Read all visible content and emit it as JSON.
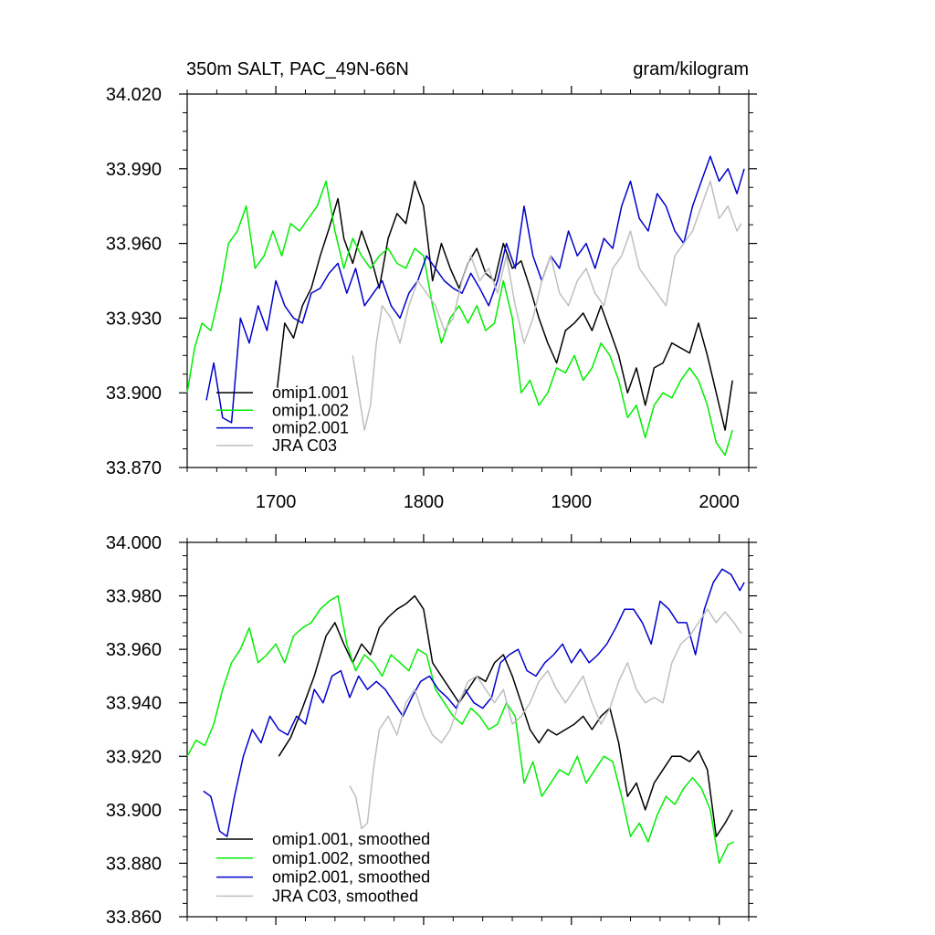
{
  "chart_data": [
    {
      "type": "line",
      "title": "350m SALT, PAC_49N-66N",
      "units": "gram/kilogram",
      "xlim": [
        1640,
        2020
      ],
      "ylim": [
        33.87,
        34.02
      ],
      "yticks": [
        "33.870",
        "33.900",
        "33.930",
        "33.960",
        "33.990",
        "34.020"
      ],
      "xticks": [
        "1700",
        "1800",
        "1900",
        "2000"
      ],
      "legend_position": "bottom-left",
      "series": [
        {
          "name": "omip1.001",
          "color": "#000000",
          "x": [
            1701,
            1706,
            1712,
            1718,
            1724,
            1730,
            1736,
            1742,
            1746,
            1752,
            1758,
            1764,
            1770,
            1776,
            1782,
            1788,
            1794,
            1800,
            1806,
            1812,
            1818,
            1824,
            1830,
            1836,
            1842,
            1848,
            1854,
            1860,
            1866,
            1872,
            1878,
            1884,
            1890,
            1896,
            1902,
            1908,
            1914,
            1920,
            1926,
            1932,
            1938,
            1944,
            1950,
            1956,
            1962,
            1968,
            1974,
            1980,
            1986,
            1992,
            1998,
            2004,
            2009
          ],
          "y": [
            33.902,
            33.928,
            33.922,
            33.935,
            33.942,
            33.955,
            33.966,
            33.978,
            33.962,
            33.952,
            33.965,
            33.955,
            33.942,
            33.962,
            33.972,
            33.968,
            33.985,
            33.975,
            33.945,
            33.96,
            33.95,
            33.942,
            33.952,
            33.958,
            33.948,
            33.945,
            33.96,
            33.95,
            33.953,
            33.942,
            33.93,
            33.92,
            33.912,
            33.925,
            33.928,
            33.932,
            33.925,
            33.935,
            33.925,
            33.915,
            33.9,
            33.91,
            33.895,
            33.91,
            33.912,
            33.92,
            33.918,
            33.916,
            33.928,
            33.915,
            33.9,
            33.885,
            33.905
          ]
        },
        {
          "name": "omip1.002",
          "color": "#00ee00",
          "x": [
            1640,
            1645,
            1650,
            1656,
            1662,
            1668,
            1674,
            1680,
            1686,
            1692,
            1698,
            1704,
            1710,
            1716,
            1722,
            1728,
            1734,
            1740,
            1746,
            1752,
            1758,
            1764,
            1770,
            1776,
            1782,
            1788,
            1794,
            1800,
            1806,
            1812,
            1818,
            1824,
            1830,
            1836,
            1842,
            1848,
            1854,
            1860,
            1866,
            1872,
            1878,
            1884,
            1890,
            1896,
            1902,
            1908,
            1914,
            1920,
            1926,
            1932,
            1938,
            1944,
            1950,
            1956,
            1962,
            1968,
            1974,
            1980,
            1986,
            1992,
            1998,
            2004,
            2009
          ],
          "y": [
            33.9,
            33.918,
            33.928,
            33.925,
            33.94,
            33.96,
            33.965,
            33.975,
            33.95,
            33.955,
            33.965,
            33.955,
            33.968,
            33.965,
            33.97,
            33.975,
            33.985,
            33.965,
            33.95,
            33.962,
            33.955,
            33.95,
            33.955,
            33.958,
            33.952,
            33.95,
            33.958,
            33.955,
            33.935,
            33.92,
            33.93,
            33.935,
            33.928,
            33.935,
            33.925,
            33.928,
            33.945,
            33.93,
            33.9,
            33.905,
            33.895,
            33.9,
            33.91,
            33.908,
            33.915,
            33.905,
            33.91,
            33.92,
            33.915,
            33.905,
            33.89,
            33.895,
            33.882,
            33.895,
            33.9,
            33.898,
            33.905,
            33.91,
            33.905,
            33.895,
            33.88,
            33.875,
            33.885
          ]
        },
        {
          "name": "omip2.001",
          "color": "#0000cc",
          "x": [
            1653,
            1658,
            1664,
            1670,
            1676,
            1682,
            1688,
            1694,
            1700,
            1706,
            1712,
            1718,
            1724,
            1730,
            1736,
            1742,
            1748,
            1754,
            1760,
            1766,
            1772,
            1778,
            1784,
            1790,
            1796,
            1802,
            1808,
            1814,
            1820,
            1826,
            1832,
            1838,
            1844,
            1850,
            1856,
            1862,
            1868,
            1874,
            1880,
            1886,
            1892,
            1898,
            1904,
            1910,
            1916,
            1922,
            1928,
            1934,
            1940,
            1946,
            1952,
            1958,
            1964,
            1970,
            1976,
            1982,
            1988,
            1994,
            2000,
            2006,
            2012,
            2017
          ],
          "y": [
            33.897,
            33.912,
            33.89,
            33.888,
            33.93,
            33.92,
            33.935,
            33.925,
            33.945,
            33.935,
            33.93,
            33.928,
            33.94,
            33.942,
            33.948,
            33.952,
            33.94,
            33.95,
            33.935,
            33.94,
            33.945,
            33.935,
            33.93,
            33.94,
            33.945,
            33.955,
            33.95,
            33.945,
            33.942,
            33.94,
            33.948,
            33.942,
            33.935,
            33.945,
            33.96,
            33.95,
            33.975,
            33.955,
            33.945,
            33.955,
            33.95,
            33.965,
            33.955,
            33.96,
            33.95,
            33.962,
            33.958,
            33.975,
            33.985,
            33.97,
            33.965,
            33.98,
            33.975,
            33.965,
            33.96,
            33.975,
            33.985,
            33.995,
            33.985,
            33.99,
            33.98,
            33.99
          ]
        },
        {
          "name": "JRA C03",
          "color": "#bfbfbf",
          "x": [
            1752,
            1756,
            1760,
            1764,
            1768,
            1772,
            1778,
            1784,
            1790,
            1796,
            1802,
            1808,
            1814,
            1820,
            1826,
            1832,
            1838,
            1844,
            1850,
            1856,
            1862,
            1868,
            1874,
            1880,
            1886,
            1892,
            1898,
            1904,
            1910,
            1916,
            1922,
            1928,
            1934,
            1940,
            1946,
            1952,
            1958,
            1964,
            1970,
            1976,
            1982,
            1988,
            1994,
            2000,
            2006,
            2012,
            2015
          ],
          "y": [
            33.915,
            33.9,
            33.885,
            33.895,
            33.92,
            33.935,
            33.93,
            33.92,
            33.935,
            33.945,
            33.94,
            33.935,
            33.925,
            33.93,
            33.945,
            33.955,
            33.945,
            33.95,
            33.94,
            33.955,
            33.935,
            33.92,
            33.93,
            33.945,
            33.955,
            33.94,
            33.935,
            33.945,
            33.95,
            33.94,
            33.935,
            33.95,
            33.955,
            33.965,
            33.95,
            33.945,
            33.94,
            33.935,
            33.955,
            33.96,
            33.965,
            33.975,
            33.985,
            33.97,
            33.975,
            33.965,
            33.968
          ]
        }
      ]
    },
    {
      "type": "line",
      "xlim": [
        1640,
        2020
      ],
      "ylim": [
        33.86,
        34.0
      ],
      "yticks": [
        "33.860",
        "33.880",
        "33.900",
        "33.920",
        "33.940",
        "33.960",
        "33.980",
        "34.000"
      ],
      "legend_position": "bottom-left",
      "series": [
        {
          "name": "omip1.001, smoothed",
          "color": "#000000",
          "x": [
            1702,
            1710,
            1718,
            1726,
            1734,
            1740,
            1746,
            1752,
            1758,
            1764,
            1770,
            1776,
            1782,
            1788,
            1794,
            1800,
            1806,
            1812,
            1818,
            1824,
            1830,
            1836,
            1842,
            1848,
            1854,
            1860,
            1866,
            1872,
            1878,
            1884,
            1890,
            1896,
            1902,
            1908,
            1914,
            1920,
            1926,
            1932,
            1938,
            1944,
            1950,
            1956,
            1962,
            1968,
            1974,
            1980,
            1986,
            1992,
            1998,
            2004,
            2009
          ],
          "y": [
            33.92,
            33.927,
            33.938,
            33.95,
            33.965,
            33.97,
            33.962,
            33.955,
            33.962,
            33.958,
            33.968,
            33.972,
            33.975,
            33.977,
            33.98,
            33.975,
            33.955,
            33.95,
            33.945,
            33.94,
            33.945,
            33.95,
            33.948,
            33.955,
            33.958,
            33.95,
            33.94,
            33.93,
            33.925,
            33.93,
            33.928,
            33.93,
            33.932,
            33.935,
            33.93,
            33.935,
            33.938,
            33.925,
            33.905,
            33.91,
            33.9,
            33.91,
            33.915,
            33.92,
            33.92,
            33.918,
            33.922,
            33.915,
            33.89,
            33.895,
            33.9
          ]
        },
        {
          "name": "omip1.002, smoothed",
          "color": "#00ee00",
          "x": [
            1640,
            1646,
            1652,
            1658,
            1664,
            1670,
            1676,
            1682,
            1688,
            1694,
            1700,
            1706,
            1712,
            1718,
            1724,
            1730,
            1736,
            1742,
            1748,
            1754,
            1760,
            1766,
            1772,
            1778,
            1784,
            1790,
            1796,
            1802,
            1808,
            1814,
            1820,
            1826,
            1832,
            1838,
            1844,
            1850,
            1856,
            1862,
            1868,
            1874,
            1880,
            1886,
            1892,
            1898,
            1904,
            1910,
            1916,
            1922,
            1928,
            1934,
            1940,
            1946,
            1952,
            1958,
            1964,
            1970,
            1976,
            1982,
            1988,
            1994,
            2000,
            2006,
            2010
          ],
          "y": [
            33.92,
            33.926,
            33.924,
            33.932,
            33.945,
            33.955,
            33.96,
            33.968,
            33.955,
            33.958,
            33.962,
            33.955,
            33.965,
            33.968,
            33.97,
            33.975,
            33.978,
            33.98,
            33.962,
            33.952,
            33.958,
            33.955,
            33.95,
            33.958,
            33.955,
            33.952,
            33.96,
            33.958,
            33.945,
            33.94,
            33.935,
            33.932,
            33.938,
            33.935,
            33.93,
            33.932,
            33.94,
            33.935,
            33.91,
            33.918,
            33.905,
            33.91,
            33.915,
            33.913,
            33.92,
            33.91,
            33.915,
            33.92,
            33.918,
            33.905,
            33.89,
            33.895,
            33.888,
            33.898,
            33.905,
            33.902,
            33.908,
            33.912,
            33.908,
            33.9,
            33.88,
            33.887,
            33.888
          ]
        },
        {
          "name": "omip2.001, smoothed",
          "color": "#0000cc",
          "x": [
            1651,
            1656,
            1662,
            1667,
            1672,
            1678,
            1684,
            1690,
            1696,
            1702,
            1708,
            1714,
            1720,
            1726,
            1732,
            1738,
            1744,
            1750,
            1756,
            1762,
            1768,
            1774,
            1780,
            1786,
            1792,
            1798,
            1804,
            1810,
            1816,
            1822,
            1828,
            1834,
            1840,
            1846,
            1852,
            1858,
            1864,
            1870,
            1876,
            1882,
            1888,
            1894,
            1900,
            1906,
            1912,
            1918,
            1924,
            1930,
            1936,
            1942,
            1948,
            1954,
            1960,
            1966,
            1972,
            1978,
            1984,
            1990,
            1996,
            2002,
            2008,
            2014,
            2017
          ],
          "y": [
            33.907,
            33.905,
            33.892,
            33.89,
            33.905,
            33.92,
            33.93,
            33.925,
            33.935,
            33.93,
            33.928,
            33.935,
            33.932,
            33.945,
            33.94,
            33.95,
            33.952,
            33.942,
            33.95,
            33.945,
            33.948,
            33.945,
            33.94,
            33.935,
            33.942,
            33.948,
            33.95,
            33.945,
            33.942,
            33.938,
            33.945,
            33.94,
            33.938,
            33.942,
            33.955,
            33.958,
            33.96,
            33.952,
            33.95,
            33.955,
            33.958,
            33.962,
            33.955,
            33.96,
            33.955,
            33.958,
            33.962,
            33.968,
            33.975,
            33.975,
            33.97,
            33.962,
            33.978,
            33.975,
            33.97,
            33.97,
            33.958,
            33.975,
            33.985,
            33.99,
            33.988,
            33.982,
            33.985
          ]
        },
        {
          "name": "JRA C03, smoothed",
          "color": "#bfbfbf",
          "x": [
            1750,
            1754,
            1758,
            1762,
            1766,
            1770,
            1776,
            1782,
            1788,
            1794,
            1800,
            1806,
            1812,
            1818,
            1824,
            1830,
            1836,
            1842,
            1848,
            1854,
            1860,
            1866,
            1872,
            1878,
            1884,
            1890,
            1896,
            1902,
            1908,
            1914,
            1920,
            1926,
            1932,
            1938,
            1944,
            1950,
            1956,
            1962,
            1968,
            1974,
            1980,
            1986,
            1992,
            1998,
            2004,
            2010,
            2015
          ],
          "y": [
            33.909,
            33.905,
            33.893,
            33.895,
            33.915,
            33.93,
            33.935,
            33.928,
            33.94,
            33.945,
            33.935,
            33.928,
            33.925,
            33.93,
            33.94,
            33.948,
            33.95,
            33.945,
            33.94,
            33.945,
            33.932,
            33.935,
            33.94,
            33.948,
            33.952,
            33.945,
            33.94,
            33.945,
            33.95,
            33.94,
            33.932,
            33.938,
            33.948,
            33.955,
            33.945,
            33.94,
            33.942,
            33.94,
            33.955,
            33.962,
            33.965,
            33.97,
            33.975,
            33.97,
            33.974,
            33.97,
            33.966
          ]
        }
      ]
    }
  ]
}
